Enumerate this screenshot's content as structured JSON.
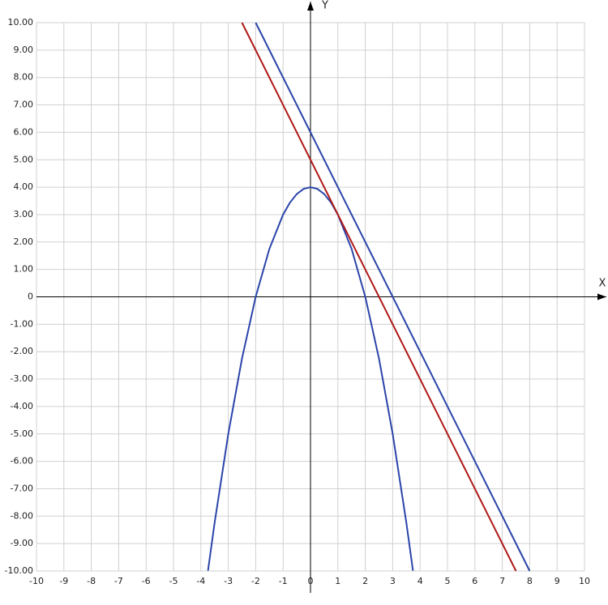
{
  "chart_data": {
    "type": "line",
    "x_label": "X",
    "y_label": "Y",
    "xlim": [
      -10,
      10
    ],
    "ylim": [
      -10,
      10
    ],
    "xticks": [
      -10,
      -9,
      -8,
      -7,
      -6,
      -5,
      -4,
      -3,
      -2,
      -1,
      0,
      1,
      2,
      3,
      4,
      5,
      6,
      7,
      8,
      9,
      10
    ],
    "yticks": [
      {
        "value": 10,
        "label": "10.00"
      },
      {
        "value": 9,
        "label": "9.00"
      },
      {
        "value": 8,
        "label": "8.00"
      },
      {
        "value": 7,
        "label": "7.00"
      },
      {
        "value": 6,
        "label": "6.00"
      },
      {
        "value": 5,
        "label": "5.00"
      },
      {
        "value": 4,
        "label": "4.00"
      },
      {
        "value": 3,
        "label": "3.00"
      },
      {
        "value": 2,
        "label": "2.00"
      },
      {
        "value": 1,
        "label": "1.00"
      },
      0,
      {
        "value": -1,
        "label": "-1.00"
      },
      {
        "value": -2,
        "label": "-2.00"
      },
      {
        "value": -3,
        "label": "-3.00"
      },
      {
        "value": -4,
        "label": "-4.00"
      },
      {
        "value": -5,
        "label": "-5.00"
      },
      {
        "value": -6,
        "label": "-6.00"
      },
      {
        "value": -7,
        "label": "-7.00"
      },
      {
        "value": -8,
        "label": "-8.00"
      },
      {
        "value": -9,
        "label": "-9.00"
      },
      {
        "value": -10,
        "label": "-10.00"
      }
    ],
    "grid": true,
    "series": [
      {
        "color": "#2a44aa",
        "x": [
          -3.74,
          -3.5,
          -3,
          -2.5,
          -2,
          -1.5,
          -1,
          -0.75,
          -0.5,
          -0.25,
          0,
          0.25,
          0.5,
          0.75,
          1,
          1.5,
          2,
          2.5,
          3,
          3.5,
          3.74
        ],
        "values": [
          -9.9876,
          -8.25,
          -5,
          -2.25,
          0,
          1.75,
          3,
          3.4375,
          3.75,
          3.9375,
          4,
          3.9375,
          3.75,
          3.4375,
          3,
          1.75,
          0,
          -2.25,
          -5,
          -8.25,
          -9.9876
        ]
      },
      {
        "color": "#2a44aa",
        "x": [
          -2,
          8
        ],
        "values": [
          10,
          -10
        ]
      },
      {
        "color": "#b01818",
        "x": [
          -2.5,
          7.5
        ],
        "values": [
          10,
          -10
        ]
      }
    ]
  }
}
